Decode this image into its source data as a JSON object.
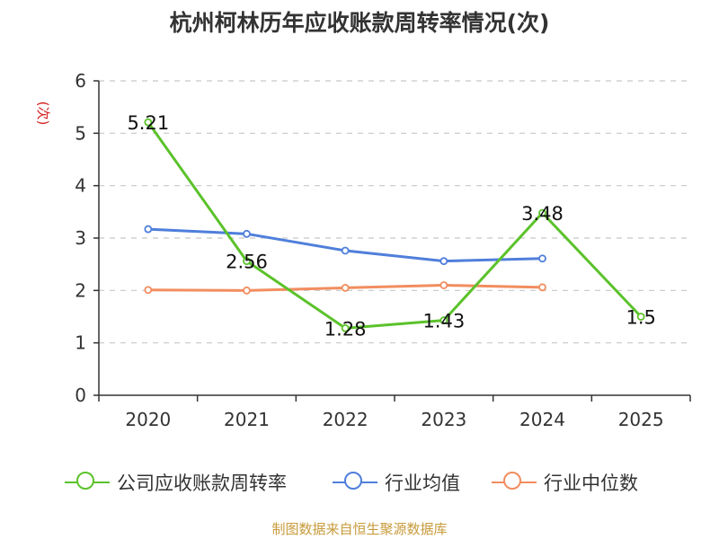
{
  "title": "杭州柯林历年应收账款周转率情况(次)",
  "source": "制图数据来自恒生聚源数据库",
  "colors": {
    "company": "#5bc22b",
    "industry_avg": "#4f7fdb",
    "industry_median": "#f28d5f",
    "ylabel": "#d42020"
  },
  "chart_data": {
    "type": "line",
    "title": "杭州柯林历年应收账款周转率情况(次)",
    "ylabel": "(次)",
    "xlabel": "",
    "ylim": [
      0,
      6
    ],
    "yticks": [
      0,
      1,
      2,
      3,
      4,
      5,
      6
    ],
    "categories": [
      "2020",
      "2021",
      "2022",
      "2023",
      "2024",
      "2025"
    ],
    "grid": true,
    "legend_position": "bottom",
    "series": [
      {
        "name": "公司应收账款周转率",
        "key": "company",
        "values": [
          5.21,
          2.56,
          1.28,
          1.43,
          3.48,
          1.5
        ],
        "labels": [
          "5.21",
          "2.56",
          "1.28",
          "1.43",
          "3.48",
          "1.5"
        ]
      },
      {
        "name": "行业均值",
        "key": "industry_avg",
        "values": [
          3.17,
          3.08,
          2.76,
          2.56,
          2.61,
          null
        ]
      },
      {
        "name": "行业中位数",
        "key": "industry_median",
        "values": [
          2.01,
          2.0,
          2.05,
          2.1,
          2.06,
          null
        ]
      }
    ]
  }
}
